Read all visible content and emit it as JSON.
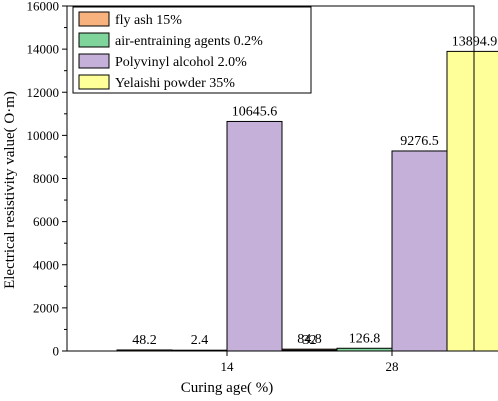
{
  "chart_data": {
    "type": "bar",
    "xlabel": "Curing age(   %)",
    "ylabel": "Electrical resistivity value(   O·m)",
    "ylim": [
      0,
      16000
    ],
    "yticks": [
      0,
      2000,
      4000,
      6000,
      8000,
      10000,
      12000,
      14000,
      16000
    ],
    "categories": [
      "14",
      "28"
    ],
    "grid": false,
    "legend_position": "top-left",
    "series": [
      {
        "name": "fly ash 15%",
        "values": [
          48.2,
          84.8
        ],
        "labels": [
          "48.2",
          "84.8"
        ],
        "color": "#f7b27e"
      },
      {
        "name": "air-entraining agents 0.2%",
        "values": [
          2.4,
          126.8
        ],
        "labels": [
          "2.4",
          "126.8"
        ],
        "color": "#7ed49a"
      },
      {
        "name": "Polyvinyl alcohol 2.0%",
        "values": [
          10645.6,
          9276.5
        ],
        "labels": [
          "10645.6",
          "9276.5"
        ],
        "color": "#c4b0d8"
      },
      {
        "name": "Yelaishi powder 35%",
        "values": [
          32,
          13894.9
        ],
        "labels": [
          "32",
          "13894.9"
        ],
        "color": "#ffff99"
      }
    ]
  }
}
